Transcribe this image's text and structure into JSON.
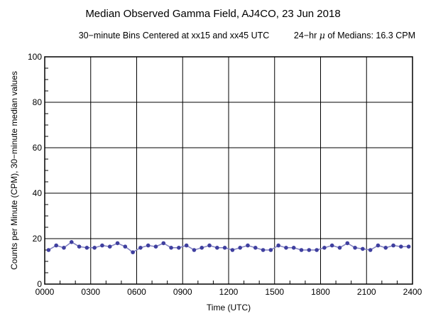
{
  "chart_data": {
    "type": "line",
    "title": "Median Observed Gamma Field, AJ4CO, 23 Jun 2018",
    "subtitle_left": "30−minute Bins Centered at xx15 and xx45 UTC",
    "subtitle_right_prefix": "24−hr ",
    "subtitle_right_symbol": "μ",
    "subtitle_right_suffix": " of Medians: 16.3 CPM",
    "xlabel": "Time (UTC)",
    "ylabel": "Counts per Minute (CPM), 30−minute median values",
    "xlim": [
      0,
      24
    ],
    "ylim": [
      0,
      100
    ],
    "x_tick_labels": [
      "0000",
      "0300",
      "0600",
      "0900",
      "1200",
      "1500",
      "1800",
      "2100",
      "2400"
    ],
    "y_tick_labels": [
      "0",
      "20",
      "40",
      "60",
      "80",
      "100"
    ],
    "grid": true,
    "marker_color": "#3f3f9f",
    "line_color": "#8080c0",
    "x": [
      0.25,
      0.75,
      1.25,
      1.75,
      2.25,
      2.75,
      3.25,
      3.75,
      4.25,
      4.75,
      5.25,
      5.75,
      6.25,
      6.75,
      7.25,
      7.75,
      8.25,
      8.75,
      9.25,
      9.75,
      10.25,
      10.75,
      11.25,
      11.75,
      12.25,
      12.75,
      13.25,
      13.75,
      14.25,
      14.75,
      15.25,
      15.75,
      16.25,
      16.75,
      17.25,
      17.75,
      18.25,
      18.75,
      19.25,
      19.75,
      20.25,
      20.75,
      21.25,
      21.75,
      22.25,
      22.75,
      23.25,
      23.75
    ],
    "values": [
      15,
      17,
      16,
      18.5,
      16.5,
      16,
      16,
      17,
      16.5,
      18,
      16.5,
      14,
      16,
      17,
      16.5,
      18,
      16,
      16,
      17,
      15,
      16,
      17,
      16,
      16,
      15,
      16,
      17,
      16,
      15,
      15,
      17,
      16,
      16,
      15,
      15,
      15,
      16,
      17,
      16,
      18,
      16,
      15.5,
      15,
      17,
      16,
      17,
      16.5,
      16.5
    ]
  }
}
